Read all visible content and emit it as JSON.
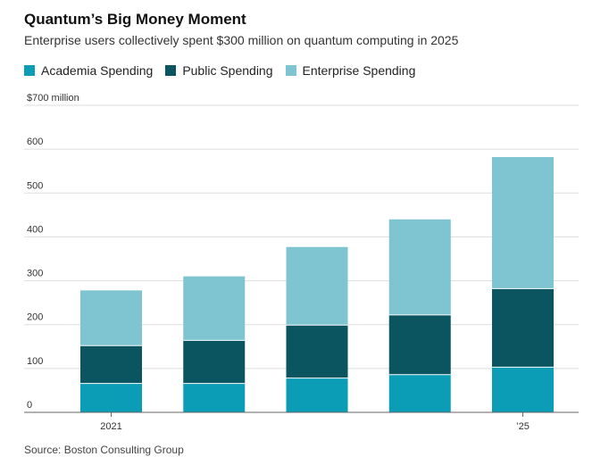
{
  "header": {
    "title": "Quantum’s Big Money Moment",
    "subtitle": "Enterprise users collectively spent $300 million on quantum computing in 2025"
  },
  "colors": {
    "academia": "#0a9db5",
    "public": "#0a5560",
    "enterprise": "#7ec4d1",
    "grid": "#dddddd",
    "axis": "#666666"
  },
  "chart_data": {
    "type": "bar",
    "stacked": true,
    "title": "Quantum’s Big Money Moment",
    "subtitle": "Enterprise users collectively spent $300 million on quantum computing in 2025",
    "categories": [
      "2021",
      "",
      "",
      "",
      "’25"
    ],
    "series": [
      {
        "name": "Academia Spending",
        "color": "#0a9db5",
        "values": [
          66,
          66,
          78,
          86,
          103
        ]
      },
      {
        "name": "Public Spending",
        "color": "#0a5560",
        "values": [
          86,
          98,
          121,
          136,
          179
        ]
      },
      {
        "name": "Enterprise Spending",
        "color": "#7ec4d1",
        "values": [
          126,
          146,
          178,
          218,
          300
        ]
      }
    ],
    "yticks": [
      "0",
      "100",
      "200",
      "300",
      "400",
      "500",
      "600",
      "$700 million"
    ],
    "ylim": [
      0,
      700
    ],
    "grid": true,
    "legend": "top"
  },
  "source": "Source: Boston Consulting Group"
}
